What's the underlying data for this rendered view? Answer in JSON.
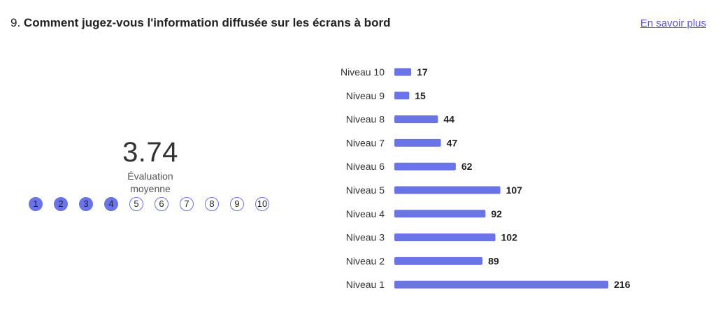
{
  "question": {
    "number": "9.",
    "text": "Comment jugez-vous l'information diffusée sur les écrans à bord"
  },
  "learn_more_label": "En savoir plus",
  "rating": {
    "value": "3.74",
    "caption": "Évaluation moyenne",
    "scale_labels": [
      "1",
      "2",
      "3",
      "4",
      "5",
      "6",
      "7",
      "8",
      "9",
      "10"
    ],
    "filled_count": 4
  },
  "colors": {
    "bar": "#6b74e6",
    "accent_link": "#5b55d6"
  },
  "chart_data": {
    "type": "bar",
    "orientation": "horizontal",
    "categories": [
      "Niveau 10",
      "Niveau 9",
      "Niveau 8",
      "Niveau 7",
      "Niveau 6",
      "Niveau 5",
      "Niveau 4",
      "Niveau 3",
      "Niveau 2",
      "Niveau 1"
    ],
    "values": [
      17,
      15,
      44,
      47,
      62,
      107,
      92,
      102,
      89,
      216
    ],
    "data_labels": [
      "17",
      "15",
      "44",
      "47",
      "62",
      "107",
      "92",
      "102",
      "89",
      "216"
    ],
    "title": "",
    "xlabel": "",
    "ylabel": "",
    "grid": false,
    "legend": "none"
  }
}
